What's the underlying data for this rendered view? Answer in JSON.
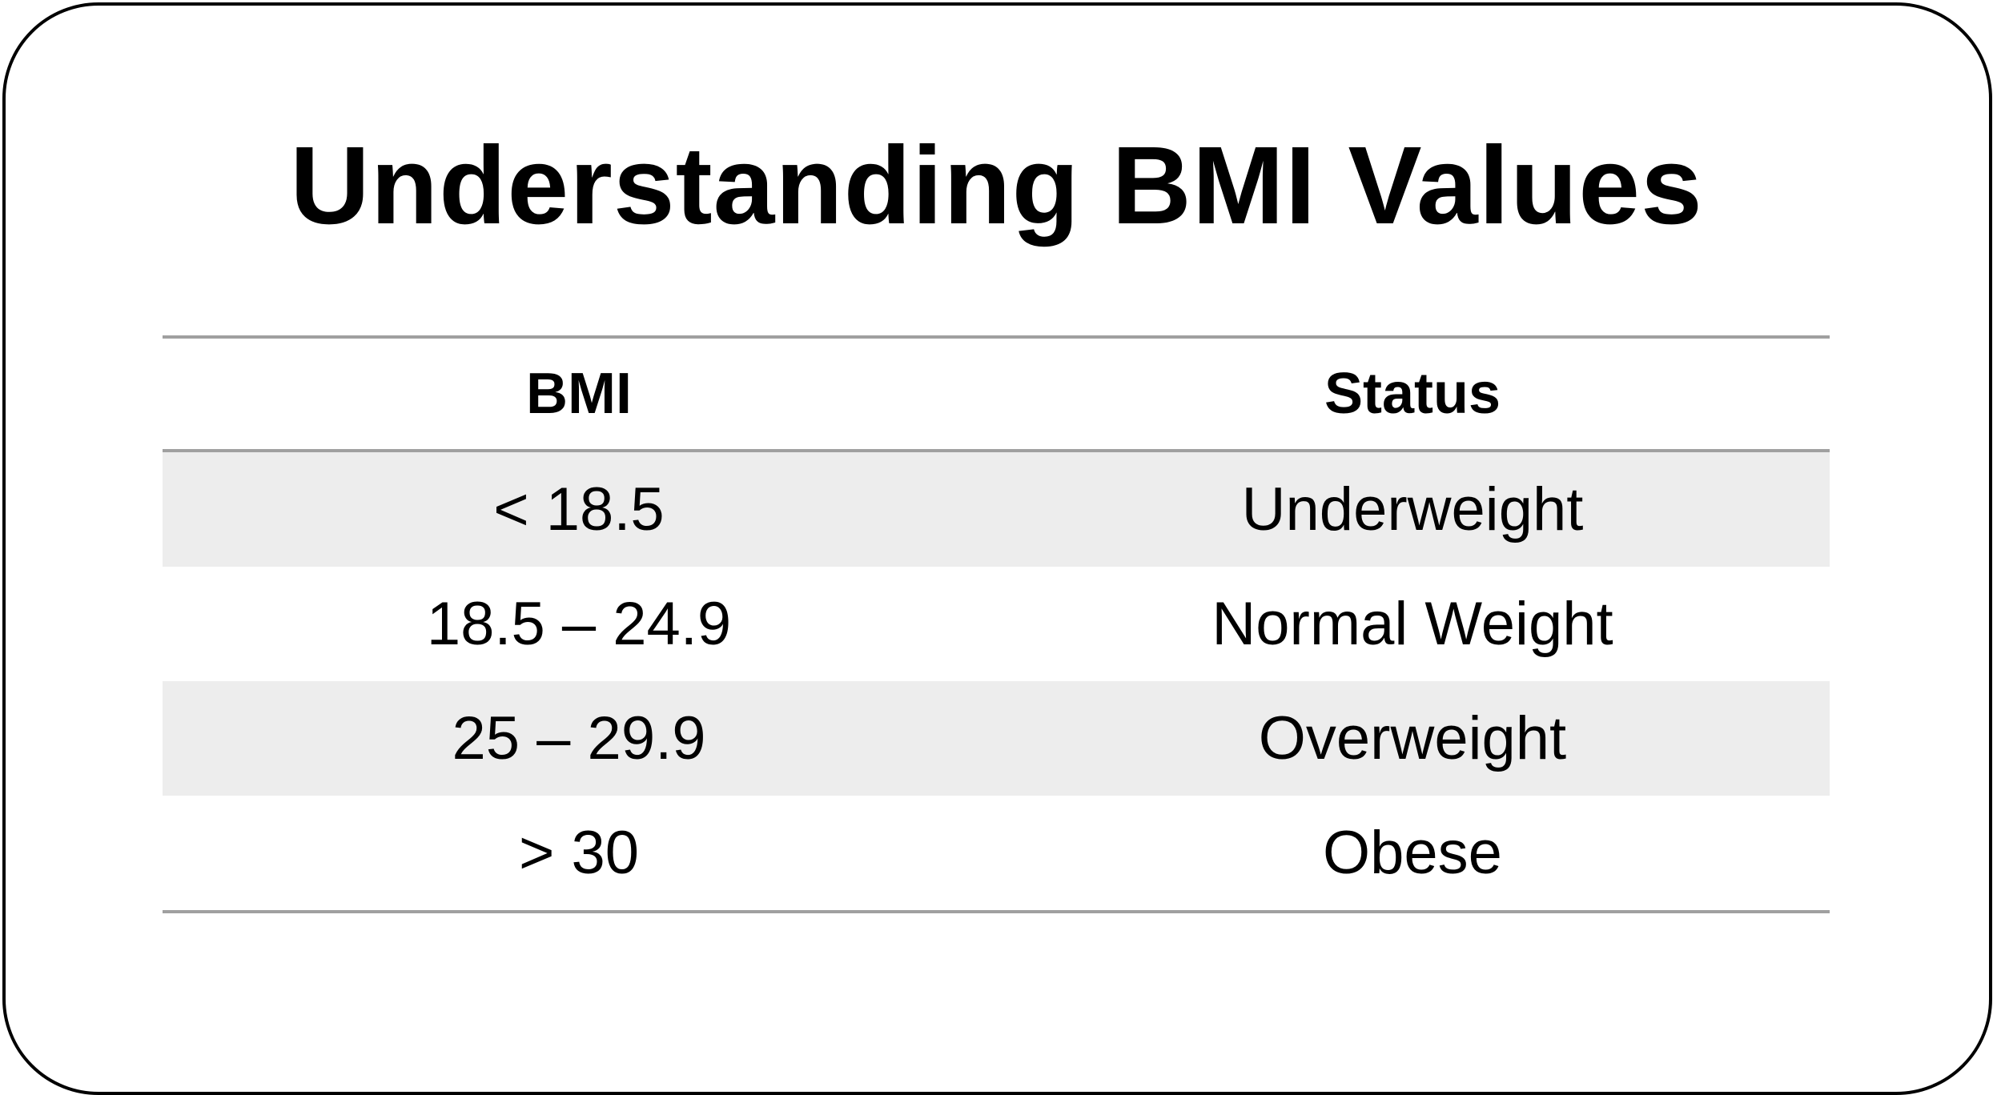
{
  "title": "Understanding BMI Values",
  "table": {
    "headers": [
      "BMI",
      "Status"
    ],
    "rows": [
      {
        "bmi": "< 18.5",
        "status": "Underweight"
      },
      {
        "bmi": "18.5 – 24.9",
        "status": "Normal Weight"
      },
      {
        "bmi": "25 – 29.9",
        "status": "Overweight"
      },
      {
        "bmi": "> 30",
        "status": "Obese"
      }
    ]
  },
  "colors": {
    "border": "#000000",
    "rule": "#a0a0a0",
    "shaded_row": "#ededed",
    "text": "#000000"
  }
}
